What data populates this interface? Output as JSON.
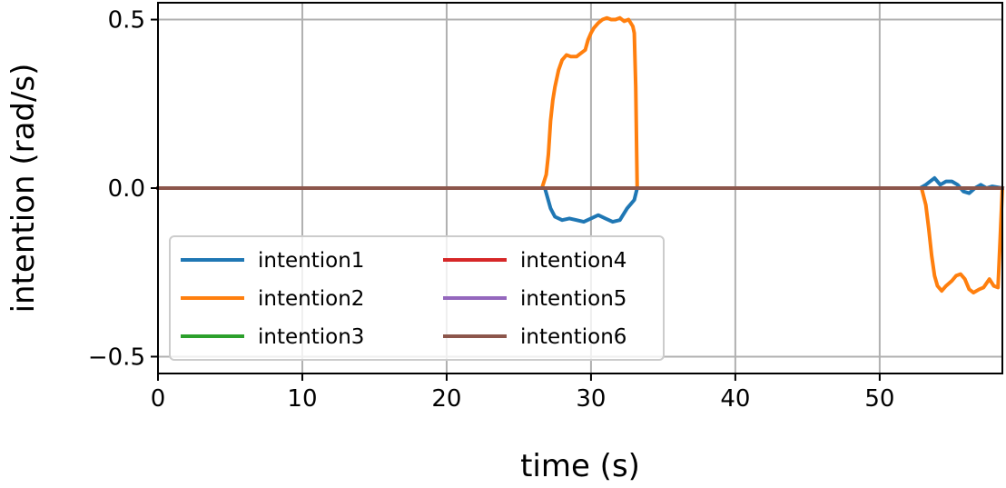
{
  "chart_data": {
    "type": "line",
    "xlabel": "time (s)",
    "ylabel": "intention (rad/s)",
    "xlim": [
      0,
      58.5
    ],
    "ylim": [
      -0.55,
      0.55
    ],
    "xticks": [
      0,
      10,
      20,
      30,
      40,
      50
    ],
    "xtick_labels": [
      "0",
      "10",
      "20",
      "30",
      "40",
      "50"
    ],
    "yticks": [
      -0.5,
      0.0,
      0.5
    ],
    "ytick_labels": [
      "−0.5",
      "0.0",
      "0.5"
    ],
    "grid": true,
    "legend_placement": "lower-left",
    "legend_columns": 2,
    "series": [
      {
        "name": "intention1",
        "color": "#1f77b4",
        "x": [
          0,
          26.8,
          27.2,
          27.5,
          28.0,
          28.5,
          29.0,
          29.5,
          30.0,
          30.5,
          31.0,
          31.5,
          32.0,
          32.5,
          33.0,
          33.2,
          52.8,
          53.2,
          53.5,
          53.8,
          54.2,
          54.6,
          55.0,
          55.4,
          55.8,
          56.2,
          56.6,
          57.0,
          57.4,
          57.8,
          58.5
        ],
        "y": [
          0,
          0,
          -0.06,
          -0.085,
          -0.095,
          -0.09,
          -0.095,
          -0.1,
          -0.09,
          -0.08,
          -0.09,
          -0.1,
          -0.095,
          -0.06,
          -0.035,
          0,
          0,
          0.01,
          0.02,
          0.03,
          0.01,
          0.02,
          0.02,
          0.01,
          -0.01,
          -0.015,
          0.0,
          0.01,
          0.0,
          0.005,
          0
        ]
      },
      {
        "name": "intention2",
        "color": "#ff7f0e",
        "x": [
          0,
          26.6,
          26.9,
          27.05,
          27.2,
          27.35,
          27.5,
          27.75,
          28.0,
          28.3,
          28.6,
          29.0,
          29.3,
          29.6,
          29.8,
          30.0,
          30.2,
          30.5,
          30.8,
          31.1,
          31.4,
          31.7,
          32.0,
          32.3,
          32.6,
          32.9,
          33.0,
          33.1,
          33.2,
          52.9,
          53.2,
          53.4,
          53.6,
          53.8,
          54.0,
          54.3,
          54.6,
          55.0,
          55.3,
          55.6,
          55.9,
          56.2,
          56.5,
          56.9,
          57.2,
          57.6,
          57.9,
          58.2,
          58.35,
          58.5
        ],
        "y": [
          0,
          0,
          0.04,
          0.1,
          0.2,
          0.26,
          0.3,
          0.35,
          0.38,
          0.395,
          0.39,
          0.39,
          0.4,
          0.41,
          0.44,
          0.46,
          0.475,
          0.49,
          0.5,
          0.505,
          0.5,
          0.5,
          0.505,
          0.495,
          0.5,
          0.48,
          0.46,
          0.3,
          0,
          0,
          -0.05,
          -0.12,
          -0.2,
          -0.26,
          -0.29,
          -0.305,
          -0.29,
          -0.275,
          -0.26,
          -0.255,
          -0.27,
          -0.3,
          -0.31,
          -0.3,
          -0.295,
          -0.27,
          -0.29,
          -0.295,
          -0.15,
          0
        ]
      },
      {
        "name": "intention3",
        "color": "#2ca02c",
        "x": [
          0,
          58.5
        ],
        "y": [
          0,
          0
        ]
      },
      {
        "name": "intention4",
        "color": "#d62728",
        "x": [
          0,
          58.5
        ],
        "y": [
          0,
          0
        ]
      },
      {
        "name": "intention5",
        "color": "#9467bd",
        "x": [
          0,
          58.5
        ],
        "y": [
          0,
          0
        ]
      },
      {
        "name": "intention6",
        "color": "#8c564b",
        "x": [
          0,
          58.5
        ],
        "y": [
          0,
          0
        ]
      }
    ]
  }
}
